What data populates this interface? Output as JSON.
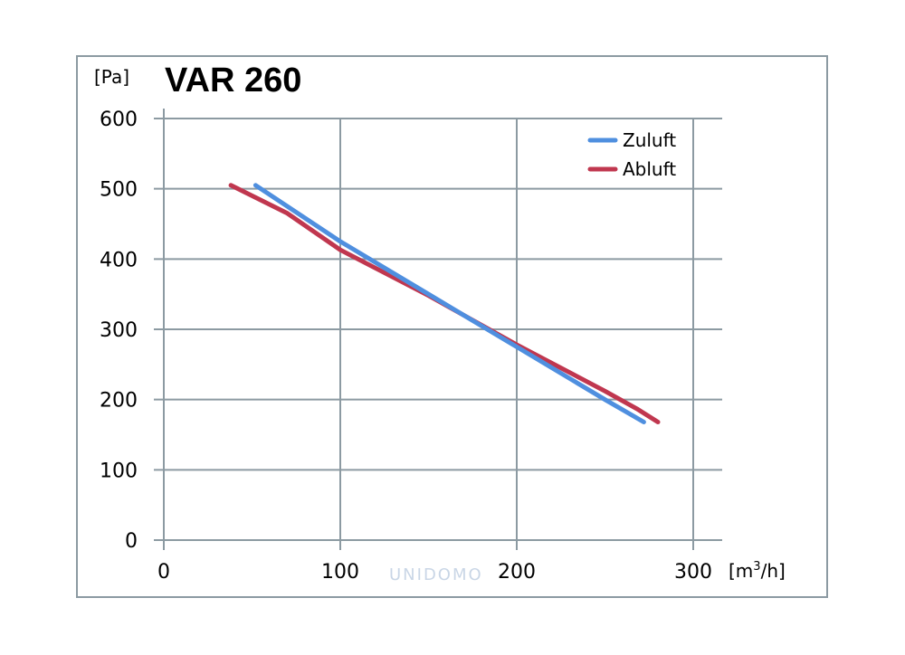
{
  "chart_data": {
    "type": "line",
    "title": "VAR 260",
    "ylabel": "[Pa]",
    "xlabel": "[m³/h]",
    "xlim": [
      0,
      300
    ],
    "ylim": [
      0,
      600
    ],
    "xticks": [
      0,
      100,
      200,
      300
    ],
    "yticks": [
      0,
      100,
      200,
      300,
      400,
      500,
      600
    ],
    "grid": true,
    "legend_position": "top-right",
    "series": [
      {
        "name": "Zuluft",
        "color": "#4f8fdf",
        "points": [
          [
            52,
            505
          ],
          [
            100,
            425
          ],
          [
            150,
            350
          ],
          [
            200,
            275
          ],
          [
            250,
            200
          ],
          [
            272,
            168
          ]
        ]
      },
      {
        "name": "Abluft",
        "color": "#c0374f",
        "points": [
          [
            38,
            505
          ],
          [
            70,
            465
          ],
          [
            100,
            413
          ],
          [
            150,
            348
          ],
          [
            200,
            278
          ],
          [
            250,
            212
          ],
          [
            268,
            187
          ],
          [
            280,
            168
          ]
        ]
      }
    ],
    "watermark": "UNIDOMO"
  }
}
